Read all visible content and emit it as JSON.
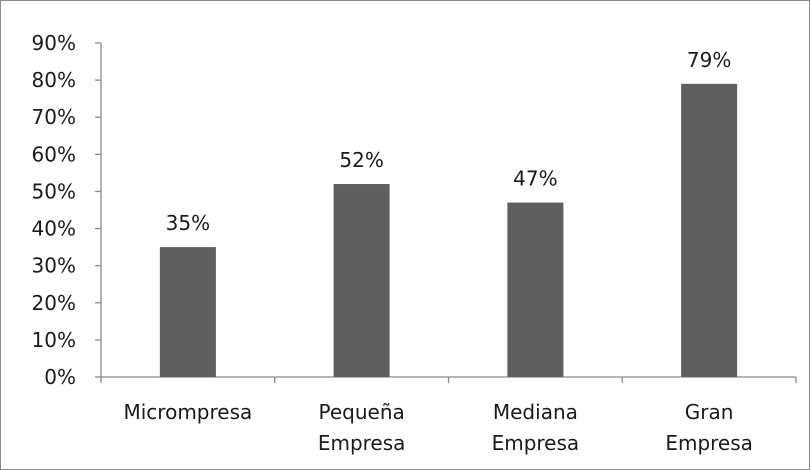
{
  "chart_data": {
    "type": "bar",
    "title": "",
    "xlabel": "",
    "ylabel": "",
    "categories": [
      [
        "Micrompresa"
      ],
      [
        "Pequeña",
        "Empresa"
      ],
      [
        "Mediana",
        "Empresa"
      ],
      [
        "Gran",
        "Empresa"
      ]
    ],
    "values": [
      35,
      52,
      47,
      79
    ],
    "data_labels": [
      "35%",
      "52%",
      "47%",
      "79%"
    ],
    "ylim": [
      0,
      90
    ],
    "y_ticks": [
      0,
      10,
      20,
      30,
      40,
      50,
      60,
      70,
      80,
      90
    ],
    "y_tick_labels": [
      "0%",
      "10%",
      "20%",
      "30%",
      "40%",
      "50%",
      "60%",
      "70%",
      "80%",
      "90%"
    ],
    "grid": false,
    "legend": "none",
    "bar_color": "#5f5f5f",
    "axis_color": "#8a8a8a"
  }
}
